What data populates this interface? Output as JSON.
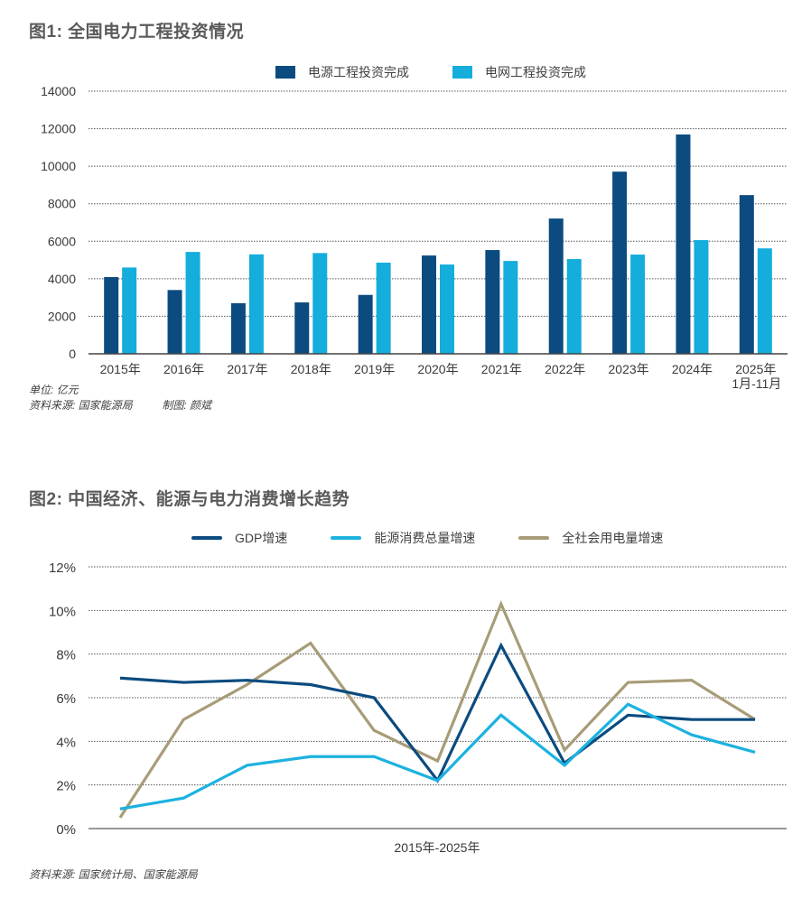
{
  "chart_data": [
    {
      "type": "bar",
      "title": "图1: 全国电力工程投资情况",
      "categories": [
        "2015年",
        "2016年",
        "2017年",
        "2018年",
        "2019年",
        "2020年",
        "2021年",
        "2022年",
        "2023年",
        "2024年",
        "2025年"
      ],
      "category_sublabels": [
        "",
        "",
        "",
        "",
        "",
        "",
        "",
        "",
        "",
        "",
        "1月-11月"
      ],
      "series": [
        {
          "name": "电源工程投资完成",
          "color": "#0b4b7f",
          "values": [
            4091,
            3400,
            2700,
            2740,
            3140,
            5240,
            5530,
            7210,
            9710,
            11690,
            8460
          ]
        },
        {
          "name": "电网工程投资完成",
          "color": "#14addc",
          "values": [
            4600,
            5430,
            5300,
            5370,
            4860,
            4760,
            4950,
            5050,
            5290,
            6060,
            5620
          ]
        }
      ],
      "yticks": [
        "0",
        "2000",
        "4000",
        "6000",
        "8000",
        "10000",
        "12000",
        "14000"
      ],
      "ylim": [
        0,
        14000
      ],
      "xlabel": "",
      "ylabel": "",
      "grid": true,
      "legend": "top",
      "unit_note": "单位: 亿元",
      "source_note": "资料来源: 国家能源局",
      "author_note": "制图: 颜斌"
    },
    {
      "type": "line",
      "title": "图2: 中国经济、能源与电力消费增长趋势",
      "x": [
        2015,
        2016,
        2017,
        2018,
        2019,
        2020,
        2021,
        2022,
        2023,
        2024,
        2025
      ],
      "series": [
        {
          "name": "GDP增速",
          "color": "#0b4b7f",
          "values": [
            6.9,
            6.7,
            6.8,
            6.6,
            6.0,
            2.2,
            8.4,
            3.0,
            5.2,
            5.0,
            5.0
          ]
        },
        {
          "name": "能源消费总量增速",
          "color": "#1cb2e0",
          "values": [
            0.9,
            1.4,
            2.9,
            3.3,
            3.3,
            2.2,
            5.2,
            2.9,
            5.7,
            4.3,
            3.5
          ]
        },
        {
          "name": "全社会用电量增速",
          "color": "#a89c78",
          "values": [
            0.5,
            5.0,
            6.6,
            8.5,
            4.5,
            3.1,
            10.3,
            3.6,
            6.7,
            6.8,
            5.0
          ]
        }
      ],
      "yticks": [
        "0%",
        "2%",
        "4%",
        "6%",
        "8%",
        "10%",
        "12%"
      ],
      "ylim": [
        0,
        12
      ],
      "xlabel": "2015年-2025年",
      "ylabel": "",
      "grid": true,
      "legend": "top",
      "source_note": "资料来源: 国家统计局、国家能源局"
    }
  ]
}
